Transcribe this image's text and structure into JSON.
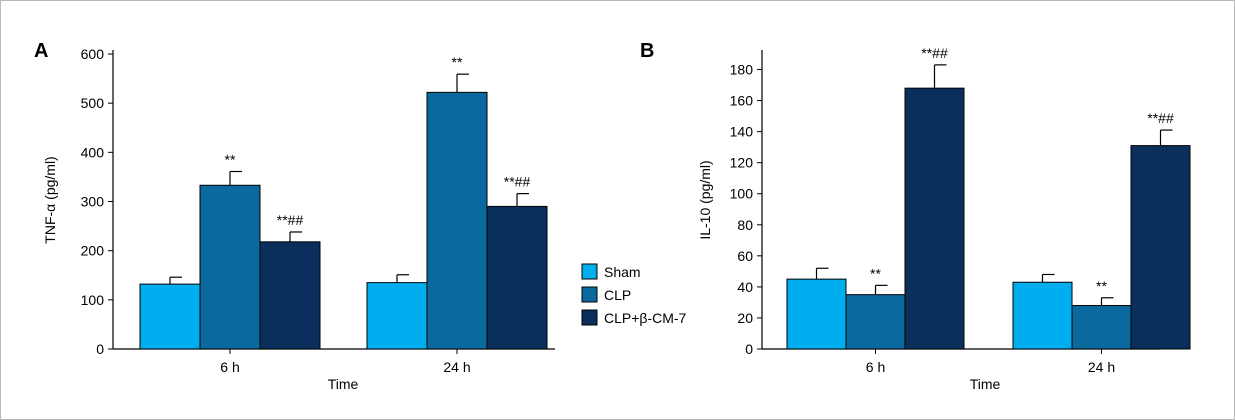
{
  "colors": {
    "sham": "#00aeef",
    "clp": "#0a6a9e",
    "clp_bcm7": "#0b2f5c"
  },
  "legend": {
    "entries": [
      "Sham",
      "CLP",
      "CLP+β-CM-7"
    ]
  },
  "chart_data": [
    {
      "type": "bar",
      "panel": "A",
      "categories": [
        "6 h",
        "24 h"
      ],
      "xlabel": "Time",
      "ylabel": "TNF-α (pg/ml)",
      "ylim": [
        0,
        600
      ],
      "yticks": [
        0,
        100,
        200,
        300,
        400,
        500,
        600
      ],
      "series": [
        {
          "name": "Sham",
          "values": [
            132,
            135
          ],
          "errors": [
            14,
            16
          ],
          "annotations": [
            "",
            ""
          ]
        },
        {
          "name": "CLP",
          "values": [
            333,
            522
          ],
          "errors": [
            28,
            37
          ],
          "annotations": [
            "**",
            "**"
          ]
        },
        {
          "name": "CLP+β-CM-7",
          "values": [
            218,
            290
          ],
          "errors": [
            20,
            26
          ],
          "annotations": [
            "**##",
            "**##"
          ]
        }
      ]
    },
    {
      "type": "bar",
      "panel": "B",
      "categories": [
        "6 h",
        "24 h"
      ],
      "xlabel": "Time",
      "ylabel": "IL-10 (pg/ml)",
      "ylim": [
        0,
        190
      ],
      "yticks": [
        0,
        20,
        40,
        60,
        80,
        100,
        120,
        140,
        160,
        180
      ],
      "series": [
        {
          "name": "Sham",
          "values": [
            45,
            43
          ],
          "errors": [
            7,
            5
          ],
          "annotations": [
            "",
            ""
          ]
        },
        {
          "name": "CLP",
          "values": [
            35,
            28
          ],
          "errors": [
            6,
            5
          ],
          "annotations": [
            "**",
            "**"
          ]
        },
        {
          "name": "CLP+β-CM-7",
          "values": [
            168,
            131
          ],
          "errors": [
            15,
            10
          ],
          "annotations": [
            "**##",
            "**##"
          ]
        }
      ]
    }
  ]
}
